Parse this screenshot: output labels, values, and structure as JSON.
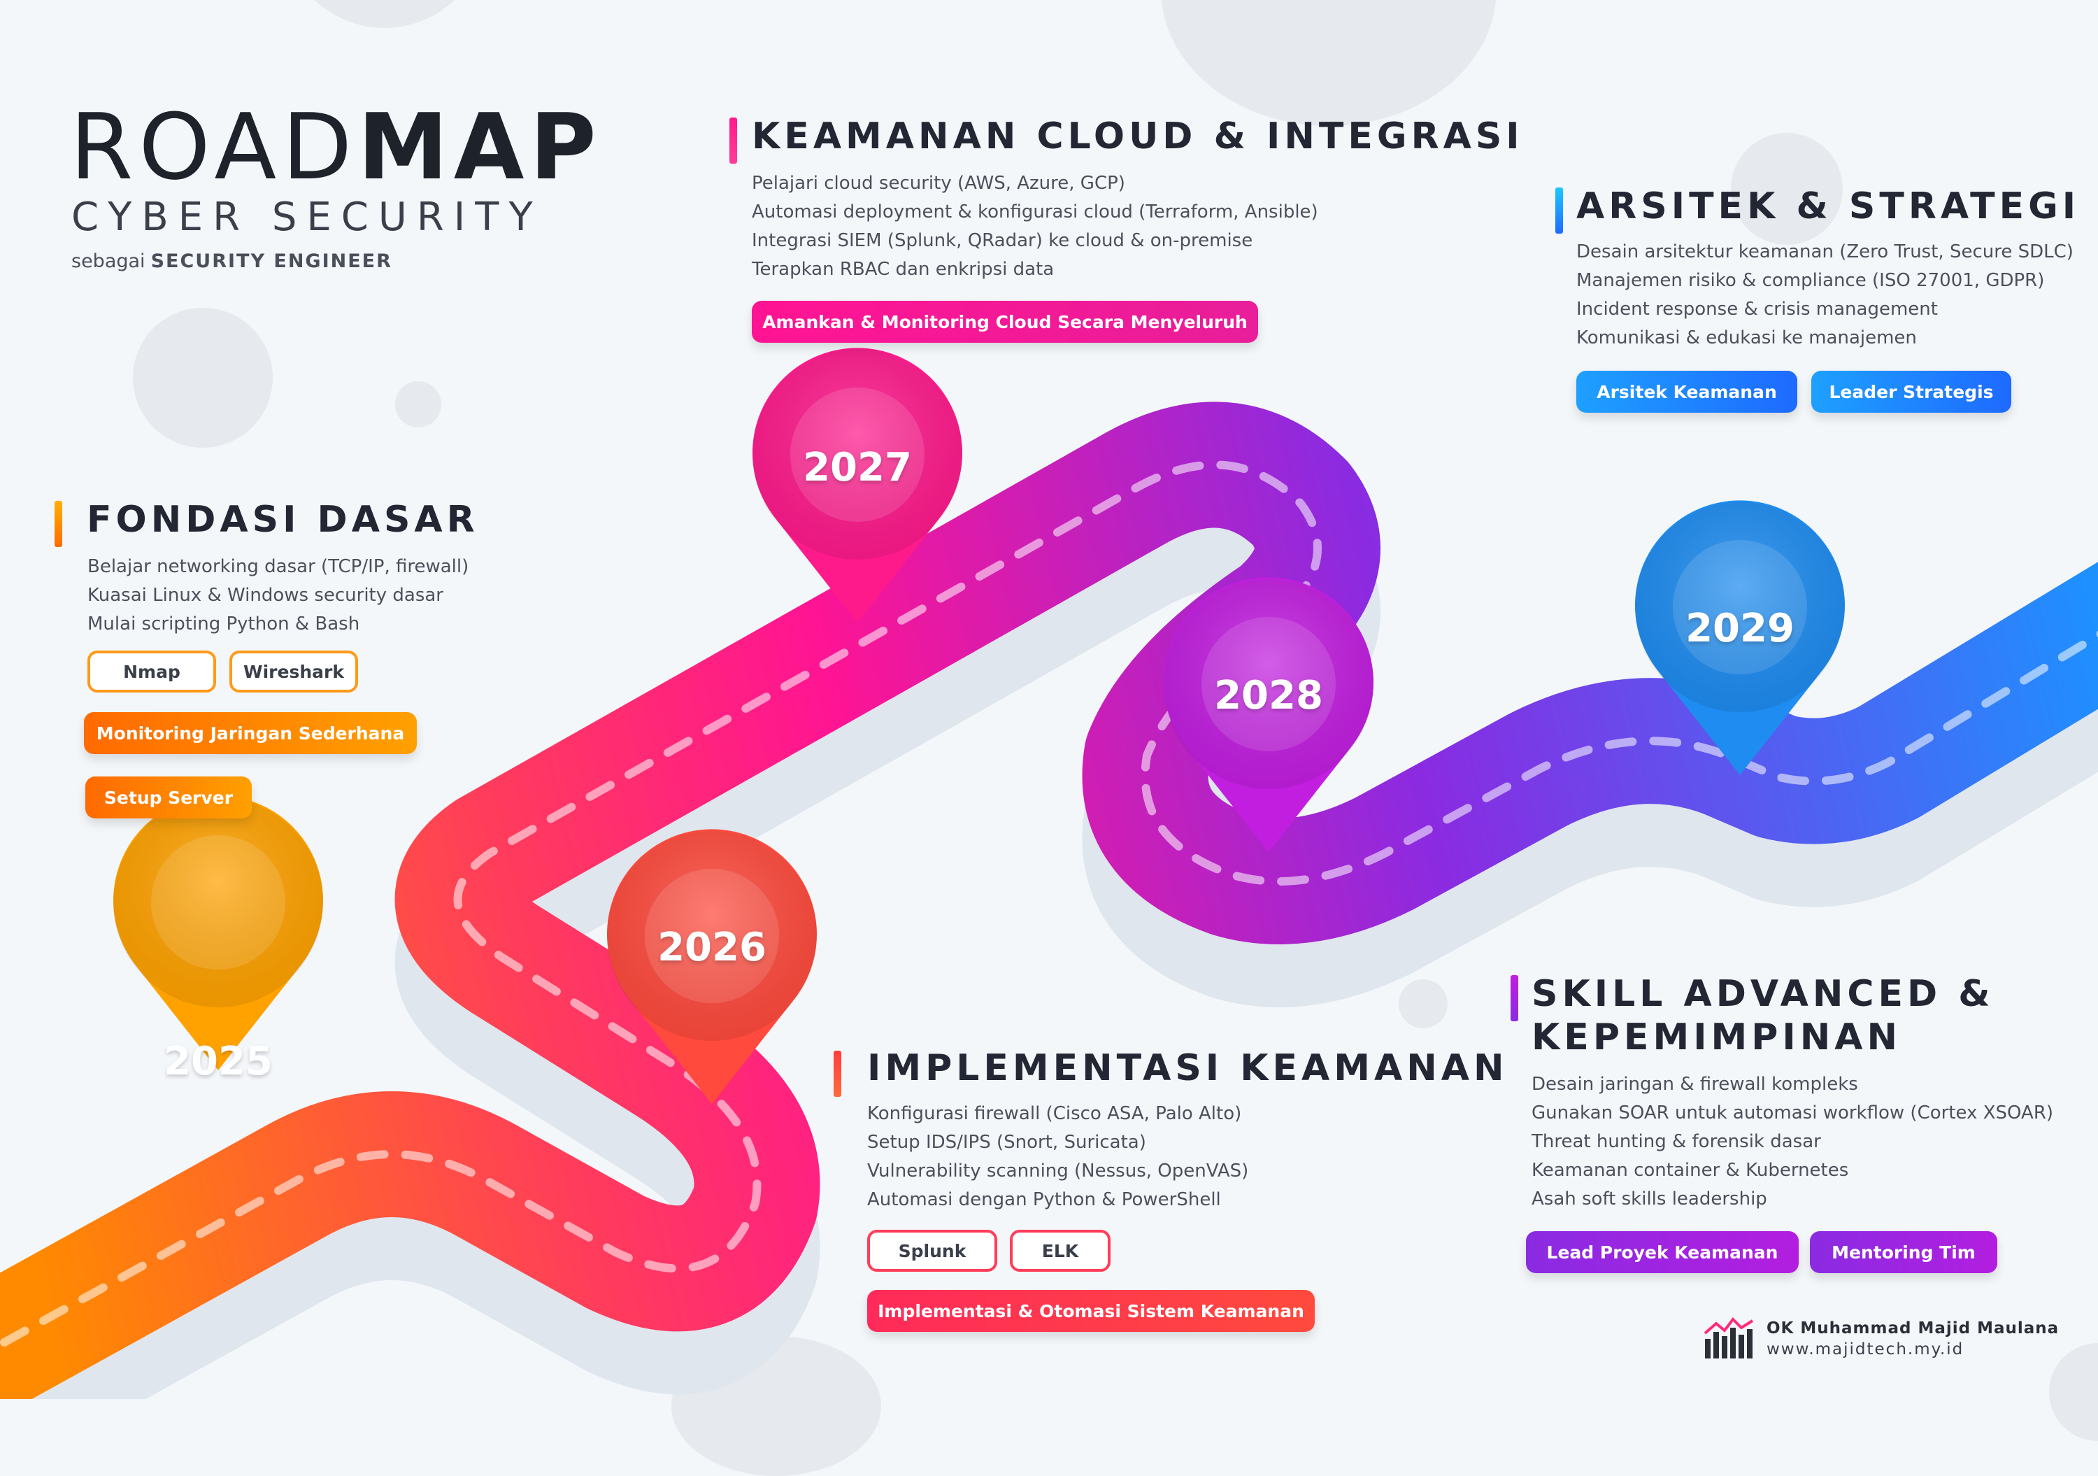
{
  "header": {
    "title_light": "ROAD",
    "title_bold": "MAP",
    "subtitle": "CYBER SECURITY",
    "role_prefix": "sebagai",
    "role": "SECURITY ENGINEER"
  },
  "colors": {
    "orange": "#ff8a00",
    "red": "#ff3d5a",
    "magenta": "#ff1493",
    "purple": "#8a2be2",
    "blue": "#1e90ff"
  },
  "milestones": [
    {
      "year": "2025"
    },
    {
      "year": "2026"
    },
    {
      "year": "2027"
    },
    {
      "year": "2028"
    },
    {
      "year": "2029"
    }
  ],
  "sections": {
    "fondasi": {
      "title": "FONDASI DASAR",
      "items": [
        "Belajar networking dasar (TCP/IP, firewall)",
        "Kuasai Linux & Windows security dasar",
        "Mulai scripting Python & Bash"
      ],
      "tools": [
        "Nmap",
        "Wireshark"
      ],
      "goals": [
        "Monitoring Jaringan Sederhana",
        "Setup Server"
      ]
    },
    "cloud": {
      "title": "KEAMANAN CLOUD & INTEGRASI",
      "items": [
        "Pelajari cloud security (AWS, Azure, GCP)",
        "Automasi deployment & konfigurasi cloud (Terraform, Ansible)",
        "Integrasi SIEM (Splunk, QRadar) ke cloud & on-premise",
        "Terapkan RBAC dan enkripsi data"
      ],
      "goals": [
        "Amankan & Monitoring Cloud Secara Menyeluruh"
      ]
    },
    "arsitek": {
      "title": "ARSITEK & STRATEGI",
      "items": [
        "Desain arsitektur keamanan (Zero Trust, Secure SDLC)",
        "Manajemen risiko & compliance (ISO 27001, GDPR)",
        "Incident response & crisis management",
        "Komunikasi & edukasi ke manajemen"
      ],
      "goals": [
        "Arsitek Keamanan",
        "Leader Strategis"
      ]
    },
    "implementasi": {
      "title": "IMPLEMENTASI KEAMANAN",
      "items": [
        "Konfigurasi firewall (Cisco ASA, Palo Alto)",
        "Setup IDS/IPS (Snort, Suricata)",
        "Vulnerability scanning (Nessus, OpenVAS)",
        "Automasi dengan Python & PowerShell"
      ],
      "tools": [
        "Splunk",
        "ELK"
      ],
      "goals": [
        "Implementasi & Otomasi Sistem Keamanan"
      ]
    },
    "advanced": {
      "title_line1": "SKILL ADVANCED &",
      "title_line2": "KEPEMIMPINAN",
      "items": [
        "Desain jaringan & firewall kompleks",
        "Gunakan SOAR untuk automasi workflow (Cortex XSOAR)",
        "Threat hunting & forensik dasar",
        "Keamanan container & Kubernetes",
        "Asah soft skills leadership"
      ],
      "goals": [
        "Lead Proyek Keamanan",
        "Mentoring Tim"
      ]
    }
  },
  "credit": {
    "name": "OK Muhammad Majid Maulana",
    "url": "www.majidtech.my.id"
  }
}
